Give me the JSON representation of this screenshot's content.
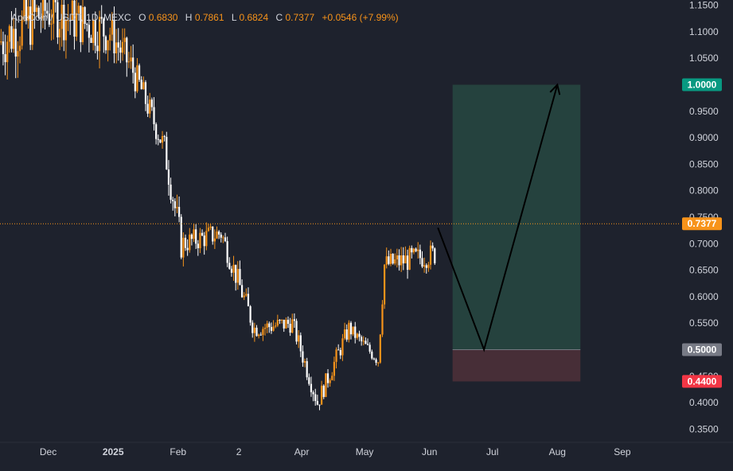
{
  "header": {
    "symbol": "ApeCoin / USDT, 1D, MEXC",
    "open_label": "O",
    "open": "0.6830",
    "high_label": "H",
    "high": "0.7861",
    "low_label": "L",
    "low": "0.6824",
    "close_label": "C",
    "close": "0.7377",
    "change": "+0.0546 (+7.99%)"
  },
  "colors": {
    "background": "#1e222d",
    "up_candle": "#f7931a",
    "down_candle": "#ffffff",
    "current_price": "#f7931a",
    "target_tag": "#089981",
    "entry_tag": "#787b86",
    "stop_tag": "#f23645",
    "profit_zone": "#26453f",
    "loss_zone": "#4a2f38",
    "axis_text": "#d1d4dc"
  },
  "chart_data": {
    "type": "candlestick",
    "title": "ApeCoin / USDT, 1D, MEXC",
    "y_axis": {
      "range": [
        0.325,
        1.16
      ],
      "ticks": [
        "1.1500",
        "1.1000",
        "1.0500",
        "0.9500",
        "0.9000",
        "0.8500",
        "0.8000",
        "0.7500",
        "0.7000",
        "0.6500",
        "0.6000",
        "0.5500",
        "0.4500",
        "0.4000",
        "0.3500"
      ]
    },
    "x_axis": {
      "range": [
        "2024-11-08",
        "2025-09-28"
      ],
      "ticks": [
        {
          "label": "Dec",
          "date": "2024-12-01",
          "bold": false
        },
        {
          "label": "2025",
          "date": "2025-01-01",
          "bold": true
        },
        {
          "label": "Feb",
          "date": "2025-02-01",
          "bold": false
        },
        {
          "label": "2",
          "date": "2025-03-02",
          "bold": false
        },
        {
          "label": "Apr",
          "date": "2025-04-01",
          "bold": false
        },
        {
          "label": "May",
          "date": "2025-05-01",
          "bold": false
        },
        {
          "label": "Jun",
          "date": "2025-06-01",
          "bold": false
        },
        {
          "label": "Jul",
          "date": "2025-07-01",
          "bold": false
        },
        {
          "label": "Aug",
          "date": "2025-08-01",
          "bold": false
        },
        {
          "label": "Sep",
          "date": "2025-09-01",
          "bold": false
        }
      ]
    },
    "current_price": {
      "value": 0.7377,
      "label": "0.7377"
    },
    "price_tags": [
      {
        "value": 1.0,
        "label": "1.0000",
        "kind": "target"
      },
      {
        "value": 0.5,
        "label": "0.5000",
        "kind": "entry"
      },
      {
        "value": 0.44,
        "label": "0.4400",
        "kind": "stop"
      }
    ],
    "position": {
      "start": "2025-06-12",
      "end": "2025-08-12",
      "target": 1.0,
      "entry": 0.5,
      "stop": 0.44
    },
    "projection_path": [
      {
        "date": "2025-06-05",
        "price": 0.73
      },
      {
        "date": "2025-06-27",
        "price": 0.5
      },
      {
        "date": "2025-08-01",
        "price": 1.0
      }
    ],
    "candle_segments": [
      {
        "start": "2024-11-08",
        "end": "2024-11-30",
        "from": 1.08,
        "to": 1.14,
        "vol": 0.12
      },
      {
        "start": "2024-11-30",
        "end": "2024-12-31",
        "from": 1.14,
        "to": 1.1,
        "vol": 0.1
      },
      {
        "start": "2024-12-31",
        "end": "2025-01-12",
        "from": 1.1,
        "to": 1.02,
        "vol": 0.08
      },
      {
        "start": "2025-01-12",
        "end": "2025-01-26",
        "from": 1.02,
        "to": 0.88,
        "vol": 0.06
      },
      {
        "start": "2025-01-26",
        "end": "2025-02-03",
        "from": 0.88,
        "to": 0.7,
        "vol": 0.07
      },
      {
        "start": "2025-02-03",
        "end": "2025-02-22",
        "from": 0.7,
        "to": 0.72,
        "vol": 0.05
      },
      {
        "start": "2025-02-22",
        "end": "2025-03-10",
        "from": 0.72,
        "to": 0.54,
        "vol": 0.05
      },
      {
        "start": "2025-03-10",
        "end": "2025-03-28",
        "from": 0.54,
        "to": 0.55,
        "vol": 0.04
      },
      {
        "start": "2025-03-28",
        "end": "2025-04-09",
        "from": 0.55,
        "to": 0.4,
        "vol": 0.04
      },
      {
        "start": "2025-04-09",
        "end": "2025-04-24",
        "from": 0.4,
        "to": 0.54,
        "vol": 0.04
      },
      {
        "start": "2025-04-24",
        "end": "2025-05-08",
        "from": 0.54,
        "to": 0.48,
        "vol": 0.03
      },
      {
        "start": "2025-05-08",
        "end": "2025-05-11",
        "from": 0.48,
        "to": 0.66,
        "vol": 0.04
      },
      {
        "start": "2025-05-11",
        "end": "2025-06-04",
        "from": 0.66,
        "to": 0.68,
        "vol": 0.05
      }
    ],
    "grid": false,
    "legend": "top-left"
  }
}
